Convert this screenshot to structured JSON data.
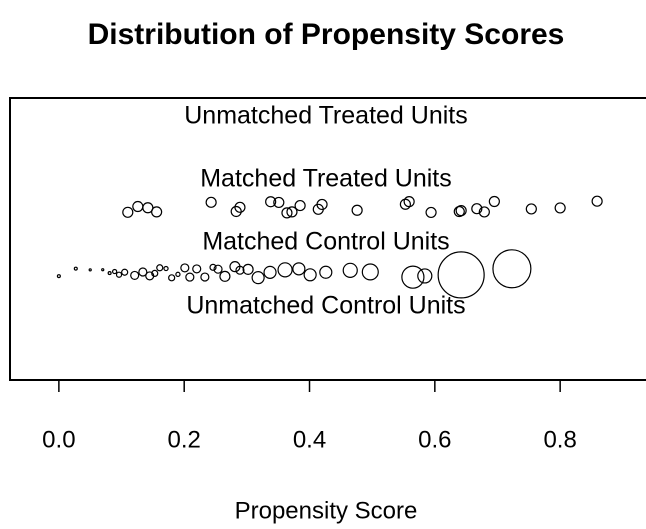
{
  "chart_data": {
    "type": "jitter",
    "title": "Distribution of Propensity Scores",
    "xlabel": "Propensity Score",
    "xlim": [
      -0.078,
      0.937
    ],
    "xticks": [
      {
        "value": 0,
        "label": "0.0"
      },
      {
        "value": 0.2,
        "label": "0.2"
      },
      {
        "value": 0.4,
        "label": "0.4"
      },
      {
        "value": 0.6,
        "label": "0.6"
      },
      {
        "value": 0.8,
        "label": "0.8"
      }
    ],
    "color": "#000000",
    "groups": [
      {
        "name": "Unmatched Treated Units",
        "x": []
      },
      {
        "name": "Matched Treated Units",
        "x": [
          0.11,
          0.126,
          0.142,
          0.156,
          0.243,
          0.283,
          0.289,
          0.338,
          0.351,
          0.364,
          0.372,
          0.385,
          0.414,
          0.42,
          0.476,
          0.553,
          0.559,
          0.594,
          0.639,
          0.642,
          0.667,
          0.679,
          0.695,
          0.754,
          0.8,
          0.859
        ]
      },
      {
        "name": "Matched Control Units",
        "x": [
          0.0,
          0.027,
          0.05,
          0.07,
          0.081,
          0.089,
          0.096,
          0.105,
          0.121,
          0.134,
          0.145,
          0.153,
          0.161,
          0.171,
          0.18,
          0.19,
          0.201,
          0.209,
          0.22,
          0.233,
          0.246,
          0.254,
          0.265,
          0.281,
          0.289,
          0.302,
          0.318,
          0.337,
          0.361,
          0.383,
          0.401,
          0.426,
          0.465,
          0.497,
          0.565,
          0.584,
          0.642,
          0.723
        ],
        "weights": [
          0.4,
          0.4,
          0.2,
          0.2,
          0.4,
          0.8,
          1.2,
          1.7,
          3,
          3,
          3,
          1.7,
          1.7,
          0.8,
          1.7,
          0.8,
          3,
          3,
          3,
          3,
          1.7,
          3,
          4.7,
          4.7,
          3,
          4.7,
          6.8,
          6.8,
          9.3,
          6.8,
          6.8,
          6.8,
          9.3,
          12,
          23,
          9.3,
          100,
          68
        ]
      },
      {
        "name": "Unmatched Control Units",
        "x": []
      }
    ]
  }
}
